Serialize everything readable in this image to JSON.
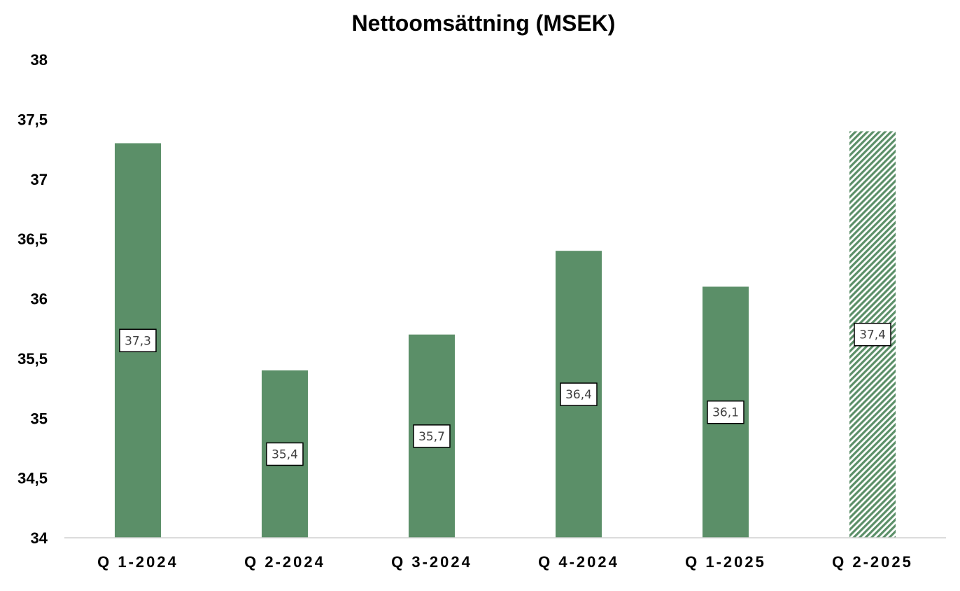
{
  "chart_data": {
    "type": "bar",
    "title": "Nettoomsättning (MSEK)",
    "xlabel": "",
    "ylabel": "",
    "categories": [
      "Q1-2024",
      "Q2-2024",
      "Q3-2024",
      "Q4-2024",
      "Q1-2025",
      "Q2-2025"
    ],
    "values": [
      37.3,
      35.4,
      35.7,
      36.4,
      36.1,
      37.4
    ],
    "data_labels": [
      "37,3",
      "35,4",
      "35,7",
      "36,4",
      "36,1",
      "37,4"
    ],
    "ylim": [
      34,
      38
    ],
    "yticks": [
      34,
      34.5,
      35,
      35.5,
      36,
      36.5,
      37,
      37.5,
      38
    ],
    "ytick_labels": [
      "34",
      "34,5",
      "35",
      "35,5",
      "36",
      "36,5",
      "37",
      "37,5",
      "38"
    ],
    "grid": false,
    "legend": "none",
    "bar_color": "#5b8f68",
    "hatched_categories": [
      "Q2-2025"
    ]
  }
}
